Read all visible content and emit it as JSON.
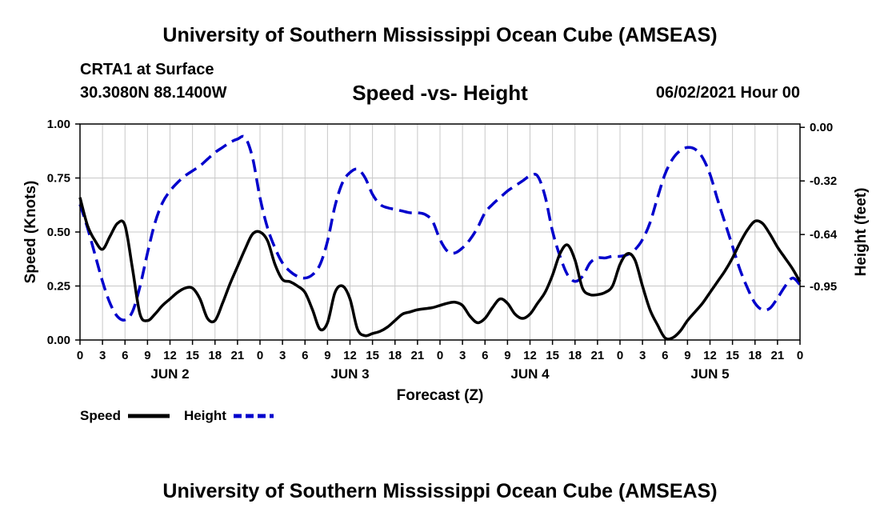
{
  "header": {
    "title": "University of Southern Mississippi Ocean Cube (AMSEAS)",
    "station": "CRTA1 at Surface",
    "coords": "30.3080N  88.1400W",
    "chart_title": "Speed -vs- Height",
    "datetime": "06/02/2021 Hour 00"
  },
  "footer": {
    "title": "University of Southern Mississippi Ocean Cube (AMSEAS)"
  },
  "colors": {
    "speed": "#000000",
    "height": "#0000cc",
    "grid": "#c8c8c8"
  },
  "chart_data": {
    "type": "line",
    "title": "Speed -vs- Height",
    "xlabel": "Forecast (Z)",
    "ylabel": "Speed (Knots)",
    "y2label": "Height (feet)",
    "xlim": [
      0,
      96
    ],
    "ylim": [
      0,
      1
    ],
    "y2lim": [
      -1.27,
      0.02
    ],
    "grid": true,
    "legend_position": "bottom-left",
    "x_tick_values": [
      0,
      3,
      6,
      9,
      12,
      15,
      18,
      21,
      24,
      27,
      30,
      33,
      36,
      39,
      42,
      45,
      48,
      51,
      54,
      57,
      60,
      63,
      66,
      69,
      72,
      75,
      78,
      81,
      84,
      87,
      90,
      93,
      96
    ],
    "x_tick_labels": [
      "0",
      "3",
      "6",
      "9",
      "12",
      "15",
      "18",
      "21",
      "0",
      "3",
      "6",
      "9",
      "12",
      "15",
      "18",
      "21",
      "0",
      "3",
      "6",
      "9",
      "12",
      "15",
      "18",
      "21",
      "0",
      "3",
      "6",
      "9",
      "12",
      "15",
      "18",
      "21",
      "0"
    ],
    "day_labels": [
      {
        "x": 12,
        "label": "JUN 2"
      },
      {
        "x": 36,
        "label": "JUN 3"
      },
      {
        "x": 60,
        "label": "JUN 4"
      },
      {
        "x": 84,
        "label": "JUN 5"
      }
    ],
    "y_ticks": [
      {
        "value": 0,
        "label": "0.00"
      },
      {
        "value": 0.25,
        "label": "0.25"
      },
      {
        "value": 0.5,
        "label": "0.50"
      },
      {
        "value": 0.75,
        "label": "0.75"
      },
      {
        "value": 1,
        "label": "1.00"
      }
    ],
    "y2_ticks": [
      {
        "value": 0,
        "label": "0.00"
      },
      {
        "value": -0.32,
        "label": "-0.32"
      },
      {
        "value": -0.64,
        "label": "-0.64"
      },
      {
        "value": -0.95,
        "label": "-0.95"
      }
    ],
    "series": [
      {
        "name": "Speed",
        "axis": "left",
        "style": "solid",
        "x": [
          0,
          1,
          2,
          3,
          4,
          5,
          6,
          7,
          8,
          9,
          10,
          11,
          12,
          13,
          14,
          15,
          16,
          17,
          18,
          19,
          20,
          21,
          22,
          23,
          24,
          25,
          26,
          27,
          28,
          29,
          30,
          31,
          32,
          33,
          34,
          35,
          36,
          37,
          38,
          39,
          40,
          41,
          42,
          43,
          44,
          45,
          46,
          47,
          48,
          49,
          50,
          51,
          52,
          53,
          54,
          55,
          56,
          57,
          58,
          59,
          60,
          61,
          62,
          63,
          64,
          65,
          66,
          67,
          68,
          69,
          70,
          71,
          72,
          73,
          74,
          75,
          76,
          77,
          78,
          79,
          80,
          81,
          82,
          83,
          84,
          85,
          86,
          87,
          88,
          89,
          90,
          91,
          92,
          93,
          94,
          95,
          96
        ],
        "values": [
          0.66,
          0.53,
          0.46,
          0.42,
          0.48,
          0.54,
          0.53,
          0.33,
          0.12,
          0.09,
          0.12,
          0.16,
          0.19,
          0.22,
          0.24,
          0.24,
          0.19,
          0.1,
          0.09,
          0.17,
          0.26,
          0.34,
          0.42,
          0.49,
          0.5,
          0.46,
          0.35,
          0.28,
          0.27,
          0.25,
          0.22,
          0.14,
          0.05,
          0.08,
          0.22,
          0.25,
          0.19,
          0.05,
          0.02,
          0.03,
          0.04,
          0.06,
          0.09,
          0.12,
          0.13,
          0.14,
          0.145,
          0.15,
          0.16,
          0.17,
          0.175,
          0.16,
          0.11,
          0.08,
          0.1,
          0.15,
          0.19,
          0.17,
          0.12,
          0.1,
          0.12,
          0.17,
          0.22,
          0.3,
          0.4,
          0.44,
          0.37,
          0.24,
          0.21,
          0.21,
          0.22,
          0.25,
          0.35,
          0.4,
          0.37,
          0.25,
          0.14,
          0.07,
          0.01,
          0.01,
          0.04,
          0.09,
          0.13,
          0.17,
          0.22,
          0.27,
          0.32,
          0.38,
          0.45,
          0.51,
          0.55,
          0.54,
          0.49,
          0.43,
          0.38,
          0.33,
          0.27
        ]
      },
      {
        "name": "Height",
        "axis": "right",
        "style": "dashed",
        "x": [
          0,
          1,
          2,
          3,
          4,
          5,
          6,
          7,
          8,
          9,
          10,
          11,
          12,
          13,
          14,
          15,
          16,
          17,
          18,
          19,
          20,
          21,
          22,
          23,
          24,
          25,
          26,
          27,
          28,
          29,
          30,
          31,
          32,
          33,
          34,
          35,
          36,
          37,
          38,
          39,
          40,
          41,
          42,
          43,
          44,
          45,
          46,
          47,
          48,
          49,
          50,
          51,
          52,
          53,
          54,
          55,
          56,
          57,
          58,
          59,
          60,
          61,
          62,
          63,
          64,
          65,
          66,
          67,
          68,
          69,
          70,
          71,
          72,
          73,
          74,
          75,
          76,
          77,
          78,
          79,
          80,
          81,
          82,
          83,
          84,
          85,
          86,
          87,
          88,
          89,
          90,
          91,
          92,
          93,
          94,
          95,
          96
        ],
        "values": [
          -0.46,
          -0.6,
          -0.76,
          -0.92,
          -1.05,
          -1.13,
          -1.15,
          -1.1,
          -0.95,
          -0.75,
          -0.57,
          -0.45,
          -0.38,
          -0.33,
          -0.29,
          -0.26,
          -0.23,
          -0.19,
          -0.15,
          -0.12,
          -0.09,
          -0.07,
          -0.06,
          -0.18,
          -0.42,
          -0.6,
          -0.72,
          -0.81,
          -0.86,
          -0.89,
          -0.9,
          -0.88,
          -0.82,
          -0.68,
          -0.47,
          -0.33,
          -0.27,
          -0.25,
          -0.3,
          -0.4,
          -0.46,
          -0.48,
          -0.49,
          -0.5,
          -0.51,
          -0.51,
          -0.52,
          -0.56,
          -0.67,
          -0.74,
          -0.75,
          -0.72,
          -0.67,
          -0.6,
          -0.51,
          -0.46,
          -0.42,
          -0.38,
          -0.35,
          -0.32,
          -0.29,
          -0.29,
          -0.41,
          -0.62,
          -0.77,
          -0.88,
          -0.92,
          -0.89,
          -0.81,
          -0.78,
          -0.78,
          -0.77,
          -0.77,
          -0.76,
          -0.73,
          -0.67,
          -0.57,
          -0.42,
          -0.28,
          -0.19,
          -0.14,
          -0.12,
          -0.13,
          -0.18,
          -0.28,
          -0.43,
          -0.57,
          -0.71,
          -0.85,
          -0.96,
          -1.05,
          -1.09,
          -1.08,
          -1.02,
          -0.95,
          -0.9,
          -0.94
        ]
      }
    ]
  }
}
